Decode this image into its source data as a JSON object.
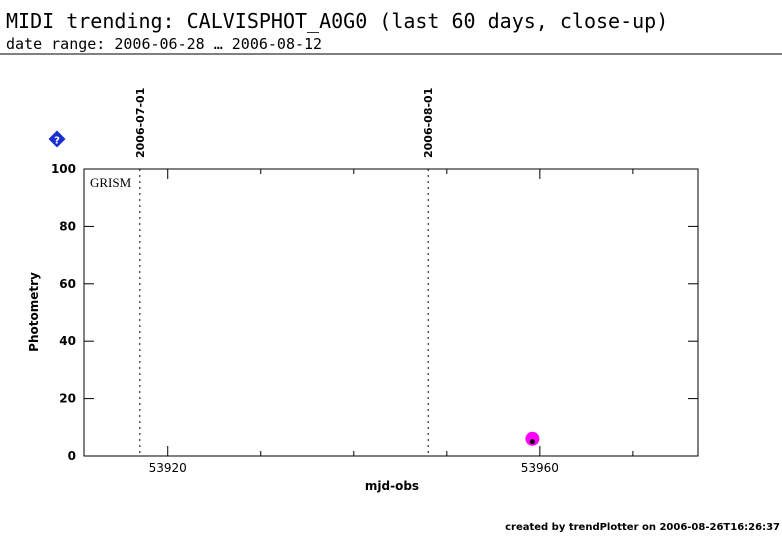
{
  "chart_data": {
    "type": "scatter",
    "title": "MIDI trending: CALVISPHOT_A0G0 (last 60 days, close-up)",
    "subtitle": "date range: 2006-06-28 … 2006-08-12",
    "xlabel": "mjd-obs",
    "ylabel": "Photometry",
    "annotation": "GRISM",
    "help_label": "?",
    "footer": "created by trendPlotter on 2006-08-26T16:26:37",
    "xlim": [
      53911,
      53977
    ],
    "xticks": [
      53920,
      53960
    ],
    "xminorticks": [
      53930,
      53940,
      53950,
      53970
    ],
    "ylim": [
      0,
      100
    ],
    "yticks": [
      0,
      20,
      40,
      60,
      80,
      100
    ],
    "vlines": [
      {
        "x": 53917,
        "label": "2006-07-01"
      },
      {
        "x": 53948,
        "label": "2006-08-01"
      }
    ],
    "series": [
      {
        "color": "#ff00ff",
        "x": [
          53959.2
        ],
        "values": [
          6
        ],
        "size": 7
      },
      {
        "color": "#000000",
        "x": [
          53959.2
        ],
        "values": [
          5
        ],
        "size": 2.5
      }
    ]
  }
}
